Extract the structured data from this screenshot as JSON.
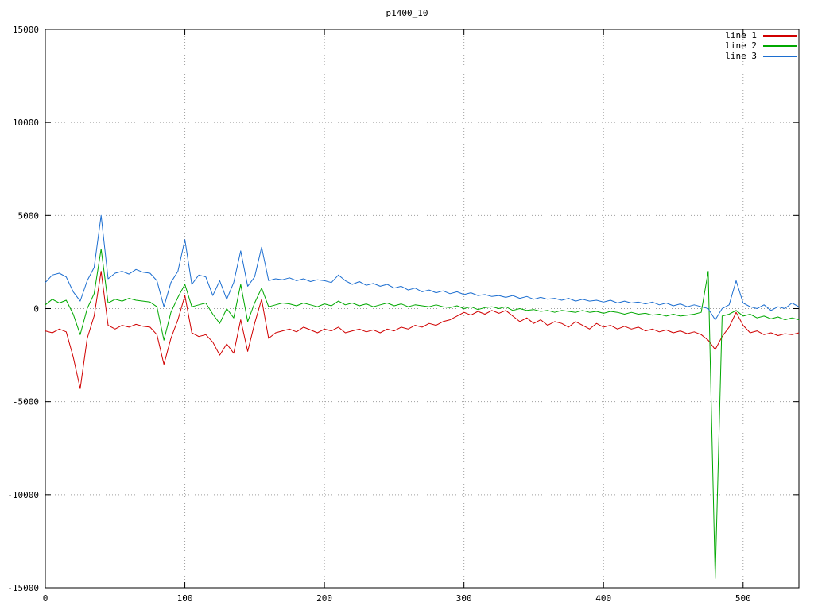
{
  "chart_data": {
    "type": "line",
    "title": "p1400_10",
    "xlabel": "",
    "ylabel": "",
    "xlim": [
      0,
      540
    ],
    "ylim": [
      -15000,
      15000
    ],
    "xticks": [
      0,
      100,
      200,
      300,
      400,
      500
    ],
    "yticks": [
      -15000,
      -10000,
      -5000,
      0,
      5000,
      10000,
      15000
    ],
    "grid": true,
    "legend_position": "top-right",
    "background_color": "#ffffff",
    "grid_color": "#9e9e9e",
    "axis_color": "#000000",
    "x": [
      0,
      5,
      10,
      15,
      20,
      25,
      30,
      35,
      40,
      45,
      50,
      55,
      60,
      65,
      70,
      75,
      80,
      85,
      90,
      95,
      100,
      105,
      110,
      115,
      120,
      125,
      130,
      135,
      140,
      145,
      150,
      155,
      160,
      165,
      170,
      175,
      180,
      185,
      190,
      195,
      200,
      205,
      210,
      215,
      220,
      225,
      230,
      235,
      240,
      245,
      250,
      255,
      260,
      265,
      270,
      275,
      280,
      285,
      290,
      295,
      300,
      305,
      310,
      315,
      320,
      325,
      330,
      335,
      340,
      345,
      350,
      355,
      360,
      365,
      370,
      375,
      380,
      385,
      390,
      395,
      400,
      405,
      410,
      415,
      420,
      425,
      430,
      435,
      440,
      445,
      450,
      455,
      460,
      465,
      470,
      475,
      480,
      485,
      490,
      495,
      500,
      505,
      510,
      515,
      520,
      525,
      530,
      535,
      540
    ],
    "series": [
      {
        "name": "line 1",
        "color": "#d00000",
        "values": [
          -1200,
          -1300,
          -1100,
          -1250,
          -2600,
          -4300,
          -1600,
          -400,
          2000,
          -900,
          -1100,
          -900,
          -1000,
          -850,
          -950,
          -1000,
          -1400,
          -3000,
          -1600,
          -600,
          700,
          -1300,
          -1500,
          -1400,
          -1800,
          -2500,
          -1900,
          -2400,
          -600,
          -2300,
          -800,
          500,
          -1600,
          -1300,
          -1200,
          -1100,
          -1250,
          -1000,
          -1150,
          -1300,
          -1100,
          -1200,
          -1000,
          -1300,
          -1200,
          -1100,
          -1250,
          -1150,
          -1300,
          -1100,
          -1200,
          -1000,
          -1100,
          -900,
          -1000,
          -800,
          -900,
          -700,
          -600,
          -400,
          -200,
          -350,
          -150,
          -300,
          -100,
          -250,
          -100,
          -400,
          -700,
          -500,
          -800,
          -600,
          -900,
          -700,
          -800,
          -1000,
          -700,
          -900,
          -1100,
          -800,
          -1000,
          -900,
          -1100,
          -950,
          -1100,
          -1000,
          -1200,
          -1100,
          -1250,
          -1150,
          -1300,
          -1200,
          -1350,
          -1250,
          -1400,
          -1700,
          -2200,
          -1500,
          -1000,
          -200,
          -900,
          -1300,
          -1200,
          -1400,
          -1300,
          -1450,
          -1350,
          -1400,
          -1300
        ]
      },
      {
        "name": "line 2",
        "color": "#00a800",
        "values": [
          200,
          500,
          300,
          450,
          -300,
          -1400,
          0,
          800,
          3200,
          300,
          500,
          400,
          550,
          450,
          400,
          350,
          100,
          -1700,
          -200,
          600,
          1300,
          100,
          200,
          300,
          -300,
          -800,
          0,
          -500,
          1300,
          -700,
          300,
          1100,
          100,
          200,
          300,
          250,
          150,
          300,
          200,
          100,
          250,
          150,
          400,
          200,
          300,
          150,
          250,
          100,
          200,
          300,
          150,
          250,
          100,
          200,
          150,
          100,
          200,
          100,
          50,
          150,
          0,
          100,
          -50,
          50,
          100,
          0,
          100,
          -100,
          0,
          -100,
          -50,
          -150,
          -100,
          -200,
          -100,
          -150,
          -200,
          -100,
          -200,
          -150,
          -250,
          -150,
          -200,
          -300,
          -200,
          -300,
          -250,
          -350,
          -300,
          -400,
          -300,
          -400,
          -350,
          -300,
          -200,
          2000,
          -14500,
          -400,
          -300,
          -100,
          -400,
          -300,
          -500,
          -400,
          -550,
          -450,
          -600,
          -500,
          -600
        ]
      },
      {
        "name": "line 3",
        "color": "#1c6ed0",
        "values": [
          1400,
          1800,
          1900,
          1700,
          900,
          400,
          1500,
          2200,
          5000,
          1600,
          1900,
          2000,
          1850,
          2100,
          1950,
          1900,
          1500,
          100,
          1400,
          2000,
          3700,
          1300,
          1800,
          1700,
          700,
          1500,
          500,
          1400,
          3100,
          1200,
          1700,
          3300,
          1500,
          1600,
          1550,
          1650,
          1500,
          1600,
          1450,
          1550,
          1500,
          1400,
          1800,
          1500,
          1300,
          1450,
          1250,
          1350,
          1200,
          1300,
          1100,
          1200,
          1000,
          1100,
          900,
          1000,
          850,
          950,
          800,
          900,
          750,
          850,
          700,
          750,
          650,
          700,
          600,
          700,
          550,
          650,
          500,
          600,
          500,
          550,
          450,
          550,
          400,
          500,
          400,
          450,
          350,
          450,
          300,
          400,
          300,
          350,
          250,
          350,
          200,
          300,
          150,
          250,
          100,
          200,
          100,
          0,
          -600,
          0,
          200,
          1500,
          300,
          100,
          0,
          200,
          -100,
          100,
          0,
          300,
          100
        ]
      }
    ]
  }
}
